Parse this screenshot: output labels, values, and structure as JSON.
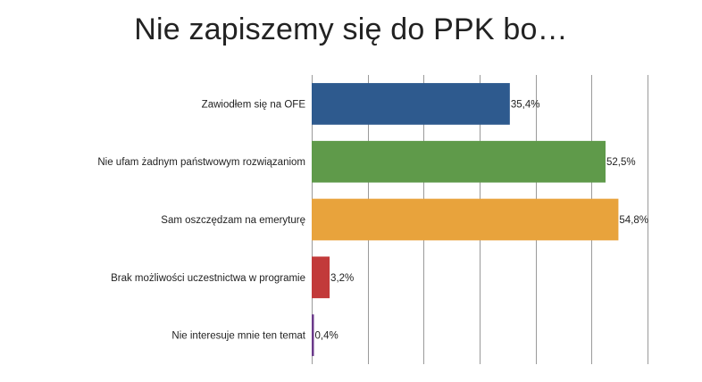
{
  "title": "Nie zapiszemy się do PPK bo…",
  "chart_data": {
    "type": "bar",
    "orientation": "horizontal",
    "title": "Nie zapiszemy się do PPK bo…",
    "categories": [
      "Zawiodłem się na OFE",
      "Nie ufam żadnym państwowym rozwiązaniom",
      "Sam oszczędzam na emeryturę",
      "Brak możliwości uczestnictwa w programie",
      "Nie interesuje mnie ten temat"
    ],
    "values": [
      35.4,
      52.5,
      54.8,
      3.2,
      0.4
    ],
    "value_labels": [
      "35,4%",
      "52,5%",
      "54,8%",
      "3,2%",
      "0,4%"
    ],
    "colors": [
      "#2e5a8e",
      "#5f9a4a",
      "#e8a33c",
      "#c23a3a",
      "#6b3a8a"
    ],
    "xlim": [
      0,
      60
    ],
    "grid": true,
    "legend": "none",
    "xlabel": "",
    "ylabel": ""
  }
}
